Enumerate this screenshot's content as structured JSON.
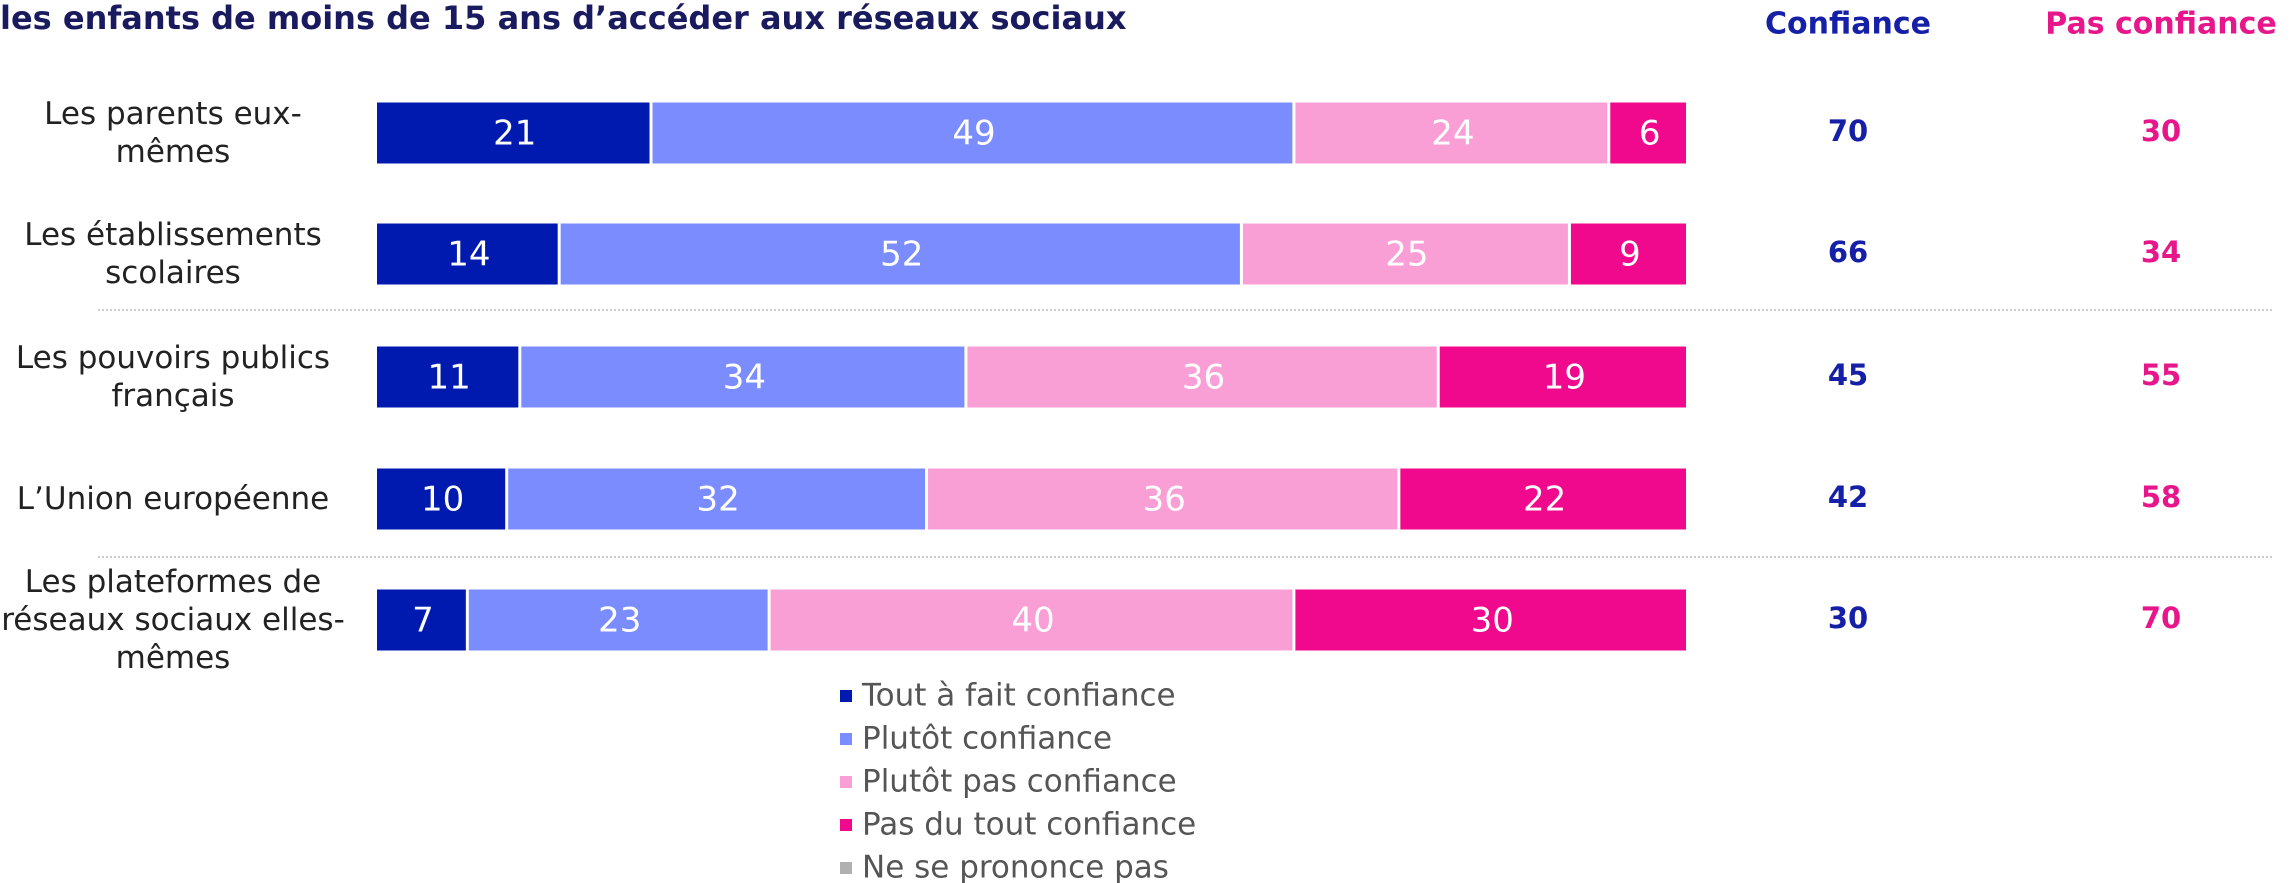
{
  "chart_data": {
    "type": "stacked-bar-horizontal",
    "title": "les enfants de moins de 15 ans d’accéder aux réseaux sociaux",
    "categories": [
      "Les parents eux-mêmes",
      "Les établissements scolaires",
      "Les pouvoirs publics français",
      "L’Union européenne",
      "Les plateformes de réseaux sociaux elles-mêmes"
    ],
    "xlim": [
      0,
      100
    ],
    "series": [
      {
        "name": "Tout à fait confiance",
        "color": "#001aaf",
        "values": [
          21,
          14,
          11,
          10,
          7
        ]
      },
      {
        "name": "Plutôt confiance",
        "color": "#7b8cff",
        "values": [
          49,
          52,
          34,
          32,
          23
        ]
      },
      {
        "name": "Plutôt pas confiance",
        "color": "#f99fd6",
        "values": [
          24,
          25,
          36,
          36,
          40
        ]
      },
      {
        "name": "Pas du tout confiance",
        "color": "#f0098c",
        "values": [
          6,
          9,
          19,
          22,
          30
        ]
      },
      {
        "name": "Ne se prononce pas",
        "color": "#b0b0b0",
        "values": [
          0,
          0,
          0,
          0,
          0
        ]
      }
    ],
    "summary_columns": [
      {
        "name": "Confiance",
        "color": "#1520a6",
        "values": [
          70,
          66,
          45,
          42,
          30
        ]
      },
      {
        "name": "Pas confiance",
        "color": "#e8168b",
        "values": [
          30,
          34,
          55,
          58,
          70
        ]
      }
    ]
  }
}
